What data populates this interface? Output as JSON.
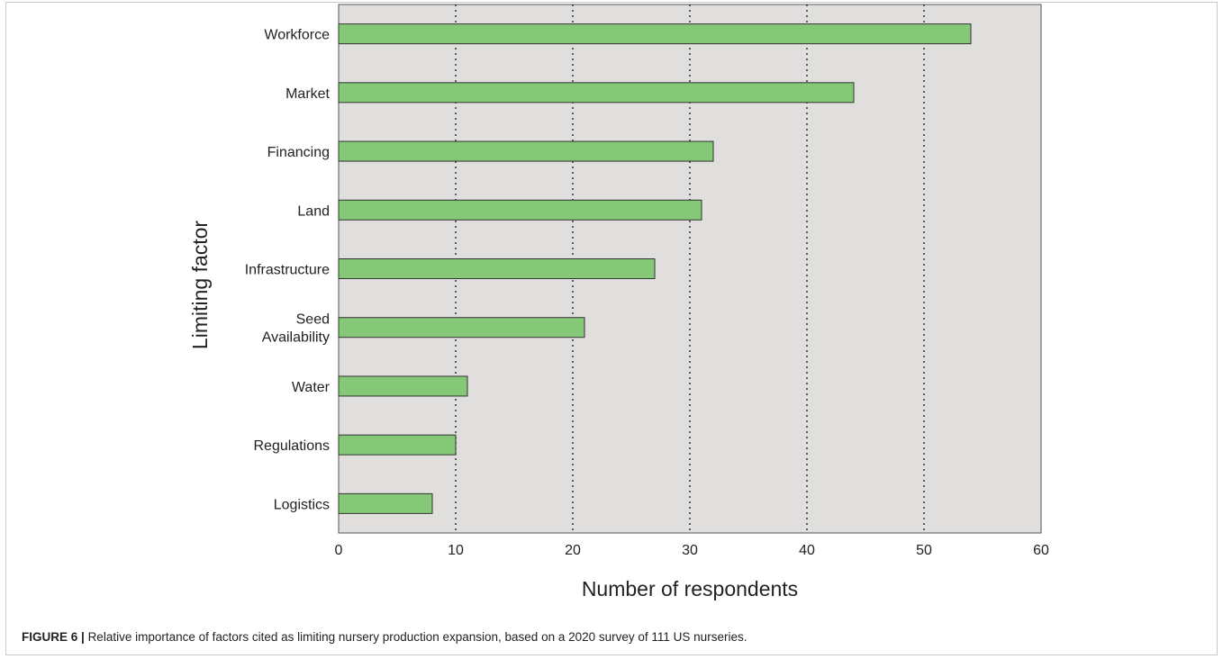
{
  "caption": {
    "label": "FIGURE 6 |",
    "text": "Relative importance of factors cited as limiting nursery production expansion, based on a 2020 survey of 111 US nurseries."
  },
  "colors": {
    "plot_background": "#e0dfde",
    "bar_fill": "#85c878",
    "bar_stroke": "#333333",
    "gridline": "#333333"
  },
  "chart_data": {
    "type": "bar",
    "orientation": "horizontal",
    "categories": [
      "Workforce",
      "Market",
      "Financing",
      "Land",
      "Infrastructure",
      "Seed\nAvailability",
      "Water",
      "Regulations",
      "Logistics"
    ],
    "values": [
      54,
      44,
      32,
      31,
      27,
      21,
      11,
      10,
      8
    ],
    "xlabel": "Number of respondents",
    "ylabel": "Limiting factor",
    "xlim": [
      0,
      60
    ],
    "xticks": [
      0,
      10,
      20,
      30,
      40,
      50,
      60
    ],
    "grid": "vertical dotted",
    "legend": "none"
  }
}
